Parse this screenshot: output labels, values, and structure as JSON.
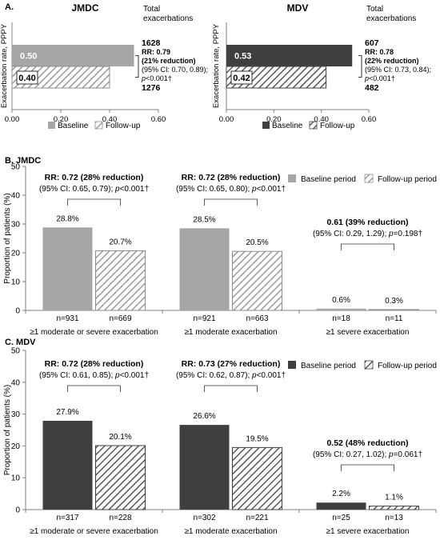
{
  "colors": {
    "jmdc_baseline": "#a6a6a6",
    "mdv_baseline": "#3f3f3f",
    "hatch": "#8c8c8c",
    "hatch_dark": "#404040",
    "axis": "#808080"
  },
  "chart_data": [
    {
      "id": "A-JMDC",
      "type": "bar",
      "orientation": "horizontal",
      "panel_label": "A.",
      "title": "JMDC",
      "ylabel": "Exacerbation rate, PPPY",
      "xlim": [
        0,
        0.6
      ],
      "x_ticks": [
        "0.00",
        "0.20",
        "0.40",
        "0.60"
      ],
      "legend": [
        "Baseline",
        "Follow-up"
      ],
      "legend_position": "bottom",
      "series": [
        {
          "name": "Baseline",
          "value": 0.5,
          "label": "0.50",
          "total": "1628"
        },
        {
          "name": "Follow-up",
          "value": 0.4,
          "label": "0.40",
          "total": "1276"
        }
      ],
      "totals_header": [
        "Total",
        "exacerbations"
      ],
      "annotation": {
        "rr": "RR: 0.79",
        "reduction": "(21% reduction)",
        "ci": "(95% CI: 0.70, 0.89);",
        "p": "p<0.001†"
      }
    },
    {
      "id": "A-MDV",
      "type": "bar",
      "orientation": "horizontal",
      "title": "MDV",
      "ylabel": "Exacerbation rate, PPPY",
      "xlim": [
        0,
        0.6
      ],
      "x_ticks": [
        "0.00",
        "0.20",
        "0.40",
        "0.60"
      ],
      "legend": [
        "Baseline",
        "Follow-up"
      ],
      "legend_position": "bottom",
      "series": [
        {
          "name": "Baseline",
          "value": 0.53,
          "label": "0.53",
          "total": "607"
        },
        {
          "name": "Follow-up",
          "value": 0.42,
          "label": "0.42",
          "total": "482"
        }
      ],
      "totals_header": [
        "Total",
        "exacerbations"
      ],
      "annotation": {
        "rr": "RR: 0.78",
        "reduction": "(22% reduction)",
        "ci": "(95% CI: 0.73, 0.84);",
        "p": "p<0.001†"
      }
    },
    {
      "id": "B",
      "type": "bar",
      "panel_label": "B.",
      "title": "JMDC",
      "ylabel": "Proportion of patients (%)",
      "ylim": [
        0,
        50
      ],
      "y_ticks": [
        "0",
        "10",
        "20",
        "30",
        "40",
        "50"
      ],
      "legend": [
        "Baseline period",
        "Follow-up period"
      ],
      "legend_position": "top-right",
      "categories": [
        "≥1 moderate or severe exacerbation",
        "≥1 moderate exacerbation",
        "≥1 severe exacerbation"
      ],
      "series": [
        {
          "name": "Baseline period",
          "values": [
            28.8,
            28.5,
            0.6
          ],
          "labels": [
            "28.8%",
            "28.5%",
            "0.6%"
          ],
          "n": [
            "n=931",
            "n=921",
            "n=18"
          ]
        },
        {
          "name": "Follow-up period",
          "values": [
            20.7,
            20.5,
            0.3
          ],
          "labels": [
            "20.7%",
            "20.5%",
            "0.3%"
          ],
          "n": [
            "n=669",
            "n=663",
            "n=11"
          ]
        }
      ],
      "annotations": [
        {
          "rr": "RR: 0.72 (28% reduction)",
          "ci": "(95% CI: 0.65, 0.79); ",
          "p": "p<0.001†"
        },
        {
          "rr": "RR: 0.72 (28% reduction)",
          "ci": "(95% CI: 0.65, 0.80); ",
          "p": "p<0.001†"
        },
        {
          "rr": "0.61 (39% reduction)",
          "ci": "(95% CI: 0.29, 1.29); ",
          "p": "p=0.198†"
        }
      ]
    },
    {
      "id": "C",
      "type": "bar",
      "panel_label": "C.",
      "title": "MDV",
      "ylabel": "Proportion of patients (%)",
      "ylim": [
        0,
        50
      ],
      "y_ticks": [
        "0",
        "10",
        "20",
        "30",
        "40",
        "50"
      ],
      "legend": [
        "Baseline period",
        "Follow-up period"
      ],
      "legend_position": "top-right",
      "categories": [
        "≥1 moderate or severe exacerbation",
        "≥1 moderate exacerbation",
        "≥1 severe exacerbation"
      ],
      "series": [
        {
          "name": "Baseline period",
          "values": [
            27.9,
            26.6,
            2.2
          ],
          "labels": [
            "27.9%",
            "26.6%",
            "2.2%"
          ],
          "n": [
            "n=317",
            "n=302",
            "n=25"
          ]
        },
        {
          "name": "Follow-up period",
          "values": [
            20.1,
            19.5,
            1.1
          ],
          "labels": [
            "20.1%",
            "19.5%",
            "1.1%"
          ],
          "n": [
            "n=228",
            "n=221",
            "n=13"
          ]
        }
      ],
      "annotations": [
        {
          "rr": "RR: 0.72 (28% reduction)",
          "ci": "(95% CI: 0.61, 0.85); ",
          "p": "p<0.001†"
        },
        {
          "rr": "RR: 0.73 (27% reduction)",
          "ci": "(95% CI: 0.62, 0.87); ",
          "p": "p<0.001†"
        },
        {
          "rr": "0.52 (48% reduction)",
          "ci": "(95% CI: 0.27, 1.02); ",
          "p": "p=0.061†"
        }
      ]
    }
  ]
}
